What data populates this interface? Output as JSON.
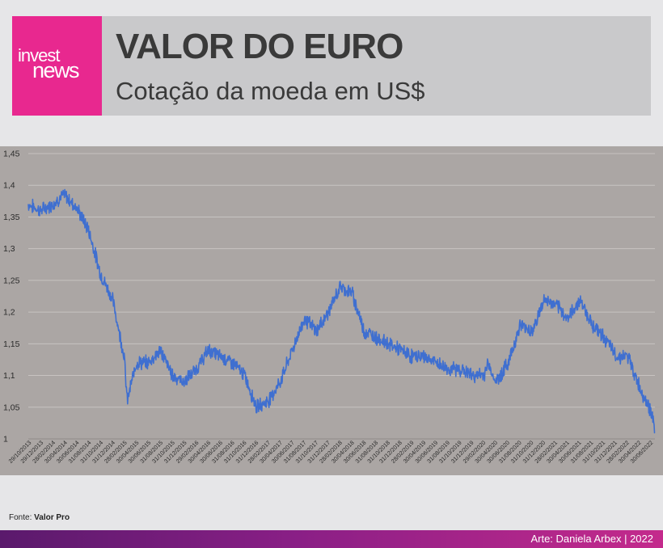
{
  "header": {
    "logo_top": "invest",
    "logo_bottom": "news",
    "title": "VALOR DO EURO",
    "subtitle": "Cotação da moeda em US$"
  },
  "colors": {
    "brand": "#e8288f",
    "line": "#3f6fd0",
    "chart_bg": "#aba6a4",
    "header_bg": "#c9c9cb"
  },
  "source": {
    "prefix": "Fonte: ",
    "name": "Valor Pro"
  },
  "footer": {
    "credit": "Arte: Daniela Arbex | 2022"
  },
  "chart_data": {
    "type": "line",
    "ylim": [
      1,
      1.45
    ],
    "yticks": [
      "1",
      "1,05",
      "1,1",
      "1,15",
      "1,2",
      "1,25",
      "1,3",
      "1,35",
      "1,4",
      "1,45"
    ],
    "grid": true,
    "xtick_labels": [
      "29/10/2013",
      "29/12/2013",
      "28/02/2014",
      "30/04/2014",
      "30/06/2014",
      "31/08/2014",
      "31/10/2014",
      "31/12/2014",
      "28/02/2015",
      "30/04/2015",
      "30/06/2015",
      "31/08/2015",
      "31/10/2015",
      "31/12/2015",
      "29/02/2016",
      "30/04/2016",
      "30/06/2016",
      "31/08/2016",
      "31/10/2016",
      "31/12/2016",
      "28/02/2017",
      "30/04/2017",
      "30/06/2017",
      "31/08/2017",
      "31/10/2017",
      "31/12/2017",
      "28/02/2018",
      "30/04/2018",
      "30/06/2018",
      "31/08/2018",
      "31/10/2018",
      "31/12/2018",
      "28/02/2019",
      "30/04/2019",
      "30/06/2019",
      "31/08/2019",
      "31/10/2019",
      "31/12/2019",
      "29/02/2020",
      "30/04/2020",
      "30/06/2020",
      "31/08/2020",
      "31/10/2020",
      "31/12/2020",
      "28/02/2021",
      "30/04/2021",
      "30/06/2021",
      "31/08/2021",
      "31/10/2021",
      "31/12/2021",
      "28/02/2022",
      "30/04/2022",
      "30/06/2022"
    ],
    "series": [
      {
        "x": [
          "2013-10-29",
          "2013-12-29",
          "2014-02-28",
          "2014-04-30",
          "2014-06-30",
          "2014-08-31",
          "2014-10-31",
          "2014-12-31",
          "2015-02-28",
          "2015-03-15",
          "2015-04-30",
          "2015-06-30",
          "2015-08-31",
          "2015-10-31",
          "2015-12-31",
          "2016-02-29",
          "2016-04-30",
          "2016-06-30",
          "2016-08-31",
          "2016-10-31",
          "2016-12-31",
          "2017-02-28",
          "2017-04-30",
          "2017-06-30",
          "2017-08-31",
          "2017-10-31",
          "2017-12-31",
          "2018-02-28",
          "2018-04-30",
          "2018-06-30",
          "2018-08-31",
          "2018-10-31",
          "2018-12-31",
          "2019-02-28",
          "2019-04-30",
          "2019-06-30",
          "2019-08-31",
          "2019-10-31",
          "2019-12-31",
          "2020-02-29",
          "2020-03-15",
          "2020-04-30",
          "2020-06-30",
          "2020-08-31",
          "2020-10-31",
          "2020-12-31",
          "2021-02-28",
          "2021-04-30",
          "2021-06-30",
          "2021-08-31",
          "2021-10-31",
          "2021-12-31",
          "2022-02-28",
          "2022-04-30",
          "2022-06-30",
          "2022-07-15"
        ],
        "values": [
          1.37,
          1.36,
          1.37,
          1.385,
          1.365,
          1.33,
          1.26,
          1.22,
          1.13,
          1.06,
          1.12,
          1.12,
          1.14,
          1.1,
          1.09,
          1.11,
          1.14,
          1.13,
          1.12,
          1.1,
          1.05,
          1.06,
          1.09,
          1.14,
          1.19,
          1.17,
          1.2,
          1.24,
          1.23,
          1.17,
          1.16,
          1.15,
          1.14,
          1.13,
          1.13,
          1.12,
          1.11,
          1.11,
          1.1,
          1.1,
          1.12,
          1.09,
          1.12,
          1.18,
          1.17,
          1.22,
          1.21,
          1.19,
          1.22,
          1.18,
          1.16,
          1.13,
          1.13,
          1.08,
          1.04,
          1.01
        ]
      }
    ]
  }
}
